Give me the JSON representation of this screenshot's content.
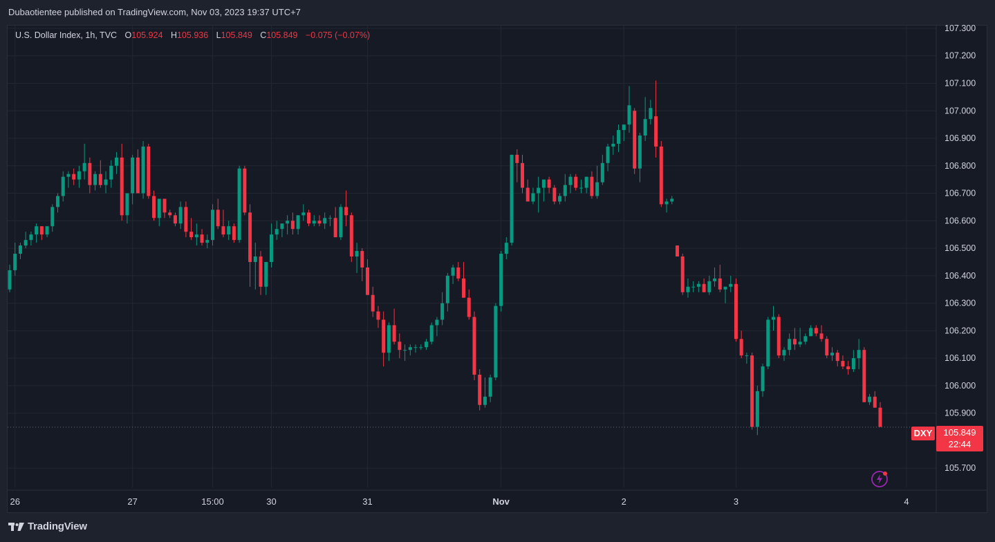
{
  "header": {
    "published": "Dubaotientee published on TradingView.com, Nov 03, 2023 19:37 UTC+7"
  },
  "legend": {
    "symbol": "U.S. Dollar Index, 1h, TVC",
    "o_label": "O",
    "o_value": "105.924",
    "h_label": "H",
    "h_value": "105.936",
    "l_label": "L",
    "l_value": "105.849",
    "c_label": "C",
    "c_value": "105.849",
    "change": "−0.075 (−0.07%)"
  },
  "price_tag": {
    "symbol": "DXY",
    "price": "105.849",
    "countdown": "22:44"
  },
  "footer": {
    "brand": "TradingView"
  },
  "colors": {
    "up": "#089981",
    "down": "#f23645",
    "grid": "#232733",
    "text": "#d1d4dc",
    "bg": "#161a25"
  },
  "chart_data": {
    "type": "candlestick",
    "symbol": "DXY",
    "interval": "1h",
    "ylim": [
      105.63,
      107.31
    ],
    "y_ticks": [
      "107.300",
      "107.200",
      "107.100",
      "107.000",
      "106.900",
      "106.800",
      "106.700",
      "106.600",
      "106.500",
      "106.400",
      "106.300",
      "106.200",
      "106.100",
      "106.000",
      "105.900",
      "105.700"
    ],
    "x_ticks": [
      "26",
      "27",
      "15:00",
      "30",
      "31",
      "Nov",
      "2",
      "3",
      "4"
    ],
    "last_price": 105.849,
    "candles": [
      [
        106.35,
        106.44,
        106.34,
        106.42
      ],
      [
        106.42,
        106.52,
        106.4,
        106.48
      ],
      [
        106.48,
        106.52,
        106.46,
        106.51
      ],
      [
        106.51,
        106.56,
        106.5,
        106.53
      ],
      [
        106.53,
        106.56,
        106.51,
        106.55
      ],
      [
        106.55,
        106.59,
        106.52,
        106.58
      ],
      [
        106.58,
        106.58,
        106.53,
        106.55
      ],
      [
        106.55,
        106.58,
        106.54,
        106.58
      ],
      [
        106.58,
        106.66,
        106.56,
        106.65
      ],
      [
        106.65,
        106.7,
        106.63,
        106.69
      ],
      [
        106.69,
        106.78,
        106.67,
        106.76
      ],
      [
        106.76,
        106.78,
        106.72,
        106.77
      ],
      [
        106.77,
        106.79,
        106.73,
        106.75
      ],
      [
        106.75,
        106.8,
        106.72,
        106.78
      ],
      [
        106.78,
        106.88,
        106.75,
        106.81
      ],
      [
        106.81,
        106.83,
        106.7,
        106.73
      ],
      [
        106.73,
        106.78,
        106.71,
        106.77
      ],
      [
        106.77,
        106.82,
        106.72,
        106.73
      ],
      [
        106.73,
        106.78,
        106.7,
        106.75
      ],
      [
        106.75,
        106.82,
        106.72,
        106.8
      ],
      [
        106.8,
        106.85,
        106.77,
        106.83
      ],
      [
        106.83,
        106.88,
        106.6,
        106.62
      ],
      [
        106.62,
        106.7,
        106.59,
        106.7
      ],
      [
        106.7,
        106.84,
        106.66,
        106.83
      ],
      [
        106.83,
        106.86,
        106.7,
        106.7
      ],
      [
        106.7,
        106.89,
        106.68,
        106.87
      ],
      [
        106.87,
        106.88,
        106.68,
        106.69
      ],
      [
        106.69,
        106.71,
        106.6,
        106.61
      ],
      [
        106.61,
        106.68,
        106.58,
        106.68
      ],
      [
        106.68,
        106.68,
        106.61,
        106.63
      ],
      [
        106.63,
        106.64,
        106.61,
        106.62
      ],
      [
        106.62,
        106.63,
        106.58,
        106.59
      ],
      [
        106.59,
        106.67,
        106.57,
        106.65
      ],
      [
        106.65,
        106.67,
        106.54,
        106.56
      ],
      [
        106.56,
        106.61,
        106.53,
        106.54
      ],
      [
        106.54,
        106.59,
        106.51,
        106.55
      ],
      [
        106.55,
        106.57,
        106.51,
        106.52
      ],
      [
        106.52,
        106.55,
        106.5,
        106.53
      ],
      [
        106.53,
        106.66,
        106.51,
        106.64
      ],
      [
        106.64,
        106.68,
        106.57,
        106.58
      ],
      [
        106.58,
        106.64,
        106.54,
        106.55
      ],
      [
        106.55,
        106.6,
        106.53,
        106.58
      ],
      [
        106.58,
        106.59,
        106.52,
        106.53
      ],
      [
        106.53,
        106.8,
        106.52,
        106.79
      ],
      [
        106.79,
        106.8,
        106.62,
        106.63
      ],
      [
        106.63,
        106.66,
        106.36,
        106.45
      ],
      [
        106.45,
        106.52,
        106.35,
        106.47
      ],
      [
        106.47,
        106.49,
        106.33,
        106.36
      ],
      [
        106.36,
        106.45,
        106.33,
        106.45
      ],
      [
        106.45,
        106.59,
        106.43,
        106.55
      ],
      [
        106.55,
        106.6,
        106.53,
        106.57
      ],
      [
        106.57,
        106.59,
        106.54,
        106.59
      ],
      [
        106.59,
        106.62,
        106.55,
        106.6
      ],
      [
        106.6,
        106.63,
        106.55,
        106.57
      ],
      [
        106.57,
        106.62,
        106.55,
        106.62
      ],
      [
        106.62,
        106.66,
        106.6,
        106.63
      ],
      [
        106.63,
        106.64,
        106.58,
        106.59
      ],
      [
        106.59,
        106.62,
        106.58,
        106.6
      ],
      [
        106.6,
        106.62,
        106.58,
        106.59
      ],
      [
        106.59,
        106.63,
        106.57,
        106.61
      ],
      [
        106.61,
        106.62,
        106.58,
        106.61
      ],
      [
        106.61,
        106.65,
        106.54,
        106.54
      ],
      [
        106.54,
        106.66,
        106.53,
        106.65
      ],
      [
        106.65,
        106.71,
        106.58,
        106.62
      ],
      [
        106.62,
        106.63,
        106.45,
        106.47
      ],
      [
        106.47,
        106.52,
        106.41,
        106.49
      ],
      [
        106.49,
        106.5,
        106.38,
        106.43
      ],
      [
        106.43,
        106.46,
        106.33,
        106.33
      ],
      [
        106.33,
        106.36,
        106.25,
        106.27
      ],
      [
        106.27,
        106.29,
        106.21,
        106.24
      ],
      [
        106.24,
        106.27,
        106.07,
        106.12
      ],
      [
        106.12,
        106.23,
        106.09,
        106.22
      ],
      [
        106.22,
        106.28,
        106.15,
        106.16
      ],
      [
        106.16,
        106.19,
        106.1,
        106.13
      ],
      [
        106.13,
        106.15,
        106.09,
        106.13
      ],
      [
        106.13,
        106.15,
        106.11,
        106.14
      ],
      [
        106.14,
        106.15,
        106.12,
        106.14
      ],
      [
        106.14,
        106.15,
        106.13,
        106.14
      ],
      [
        106.14,
        106.17,
        106.13,
        106.16
      ],
      [
        106.16,
        106.23,
        106.15,
        106.22
      ],
      [
        106.22,
        106.25,
        106.18,
        106.24
      ],
      [
        106.24,
        106.34,
        106.22,
        106.3
      ],
      [
        106.3,
        106.41,
        106.27,
        106.4
      ],
      [
        106.4,
        106.44,
        106.37,
        106.43
      ],
      [
        106.43,
        106.45,
        106.38,
        106.39
      ],
      [
        106.39,
        106.45,
        106.32,
        106.32
      ],
      [
        106.32,
        106.35,
        106.24,
        106.25
      ],
      [
        106.25,
        106.27,
        106.02,
        106.04
      ],
      [
        106.04,
        106.06,
        105.91,
        105.93
      ],
      [
        105.93,
        106.03,
        105.92,
        105.96
      ],
      [
        105.96,
        106.04,
        105.94,
        106.03
      ],
      [
        106.03,
        106.3,
        106.02,
        106.29
      ],
      [
        106.29,
        106.49,
        106.27,
        106.48
      ],
      [
        106.48,
        106.54,
        106.46,
        106.52
      ],
      [
        106.52,
        106.84,
        106.51,
        106.84
      ],
      [
        106.84,
        106.86,
        106.74,
        106.81
      ],
      [
        106.81,
        106.84,
        106.7,
        106.72
      ],
      [
        106.72,
        106.75,
        106.67,
        106.67
      ],
      [
        106.67,
        106.72,
        106.66,
        106.7
      ],
      [
        106.7,
        106.76,
        106.63,
        106.72
      ],
      [
        106.72,
        106.74,
        106.67,
        106.75
      ],
      [
        106.75,
        106.76,
        106.7,
        106.72
      ],
      [
        106.72,
        106.73,
        106.66,
        106.67
      ],
      [
        106.67,
        106.7,
        106.66,
        106.69
      ],
      [
        106.69,
        106.77,
        106.67,
        106.73
      ],
      [
        106.73,
        106.77,
        106.7,
        106.76
      ],
      [
        106.76,
        106.77,
        106.71,
        106.72
      ],
      [
        106.72,
        106.75,
        106.7,
        106.72
      ],
      [
        106.72,
        106.76,
        106.7,
        106.76
      ],
      [
        106.76,
        106.78,
        106.68,
        106.69
      ],
      [
        106.69,
        106.8,
        106.68,
        106.74
      ],
      [
        106.74,
        106.84,
        106.73,
        106.81
      ],
      [
        106.81,
        106.88,
        106.78,
        106.87
      ],
      [
        106.87,
        106.91,
        106.84,
        106.88
      ],
      [
        106.88,
        106.95,
        106.85,
        106.93
      ],
      [
        106.93,
        106.94,
        106.89,
        106.95
      ],
      [
        106.95,
        107.09,
        106.92,
        107.02
      ],
      [
        107.0,
        107.01,
        106.77,
        106.79
      ],
      [
        106.79,
        106.92,
        106.74,
        106.91
      ],
      [
        106.91,
        107.05,
        106.89,
        106.97
      ],
      [
        106.97,
        107.04,
        106.95,
        107.01
      ],
      [
        106.98,
        107.11,
        106.83,
        106.87
      ],
      [
        106.87,
        106.89,
        106.65,
        106.66
      ],
      [
        106.66,
        106.68,
        106.63,
        106.67
      ],
      [
        106.67,
        106.69,
        106.66,
        106.68
      ],
      [
        106.51,
        106.51,
        106.47,
        106.47
      ],
      [
        106.47,
        106.48,
        106.33,
        106.34
      ],
      [
        106.34,
        106.39,
        106.32,
        106.36
      ],
      [
        106.36,
        106.38,
        106.34,
        106.36
      ],
      [
        106.36,
        106.38,
        106.34,
        106.37
      ],
      [
        106.37,
        106.39,
        106.34,
        106.34
      ],
      [
        106.34,
        106.4,
        106.33,
        106.38
      ],
      [
        106.38,
        106.43,
        106.36,
        106.39
      ],
      [
        106.39,
        106.44,
        106.34,
        106.35
      ],
      [
        106.35,
        106.36,
        106.3,
        106.36
      ],
      [
        106.36,
        106.4,
        106.34,
        106.37
      ],
      [
        106.37,
        106.39,
        106.16,
        106.17
      ],
      [
        106.17,
        106.2,
        106.1,
        106.11
      ],
      [
        106.11,
        106.12,
        106.08,
        106.11
      ],
      [
        106.11,
        106.12,
        105.84,
        105.85
      ],
      [
        105.85,
        106.0,
        105.82,
        105.98
      ],
      [
        105.98,
        106.08,
        105.96,
        106.07
      ],
      [
        106.07,
        106.25,
        106.06,
        106.24
      ],
      [
        106.24,
        106.29,
        106.2,
        106.25
      ],
      [
        106.25,
        106.26,
        106.1,
        106.11
      ],
      [
        106.11,
        106.14,
        106.09,
        106.13
      ],
      [
        106.13,
        106.19,
        106.11,
        106.17
      ],
      [
        106.17,
        106.21,
        106.13,
        106.15
      ],
      [
        106.15,
        106.21,
        106.14,
        106.16
      ],
      [
        106.16,
        106.19,
        106.15,
        106.18
      ],
      [
        106.18,
        106.22,
        106.18,
        106.21
      ],
      [
        106.21,
        106.22,
        106.18,
        106.19
      ],
      [
        106.19,
        106.22,
        106.16,
        106.17
      ],
      [
        106.17,
        106.18,
        106.1,
        106.11
      ],
      [
        106.11,
        106.14,
        106.09,
        106.12
      ],
      [
        106.12,
        106.13,
        106.07,
        106.09
      ],
      [
        106.09,
        106.11,
        106.06,
        106.07
      ],
      [
        106.07,
        106.09,
        106.04,
        106.06
      ],
      [
        106.06,
        106.13,
        106.05,
        106.1
      ],
      [
        106.1,
        106.17,
        106.06,
        106.13
      ],
      [
        106.13,
        106.14,
        105.94,
        105.94
      ],
      [
        105.94,
        105.97,
        105.93,
        105.96
      ],
      [
        105.96,
        105.98,
        105.92,
        105.92
      ],
      [
        105.92,
        105.94,
        105.85,
        105.85
      ]
    ]
  }
}
